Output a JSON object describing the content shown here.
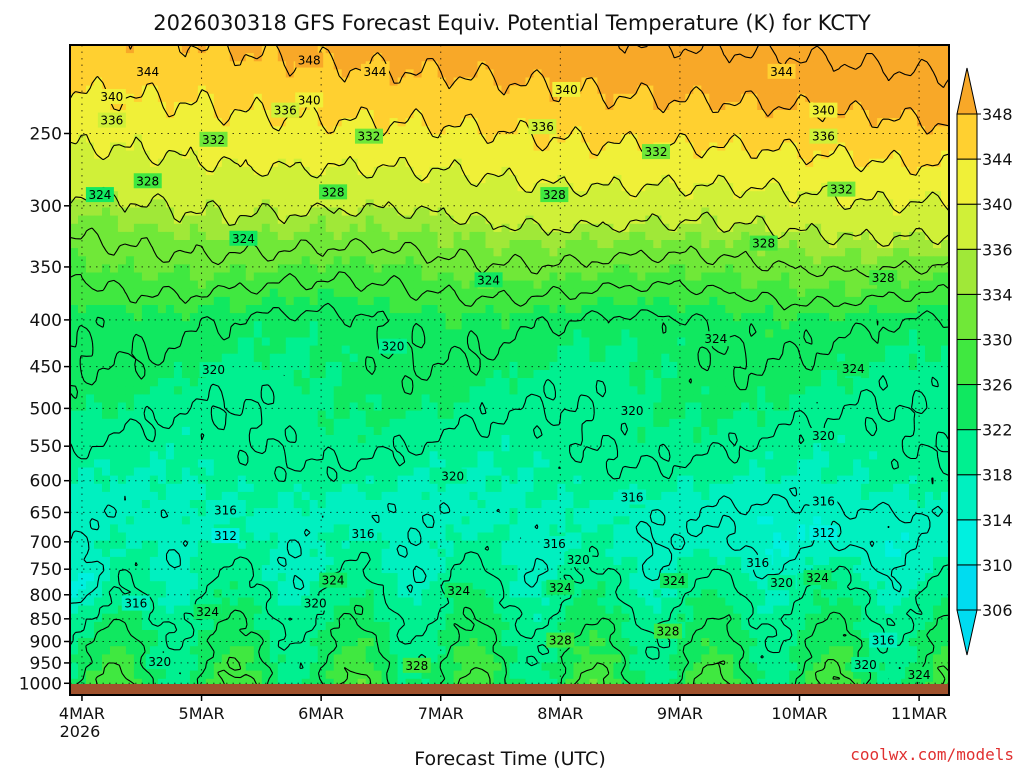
{
  "chart_data": {
    "type": "heatmap",
    "title": "2026030318 GFS Forecast Equiv. Potential Temperature (K) for KCTY",
    "xlabel": "Forecast Time (UTC)",
    "ylabel": "",
    "y_axis": {
      "inverted": true,
      "range": [
        200,
        1030
      ],
      "ticks": [
        250,
        300,
        350,
        400,
        450,
        500,
        550,
        600,
        650,
        700,
        750,
        800,
        850,
        900,
        950,
        1000
      ]
    },
    "x_axis": {
      "range": [
        -0.1,
        7.25
      ],
      "ticks": [
        {
          "value": 0,
          "label": "4MAR",
          "sublabel": "2026"
        },
        {
          "value": 1,
          "label": "5MAR"
        },
        {
          "value": 2,
          "label": "6MAR"
        },
        {
          "value": 3,
          "label": "7MAR"
        },
        {
          "value": 4,
          "label": "8MAR"
        },
        {
          "value": 5,
          "label": "9MAR"
        },
        {
          "value": 6,
          "label": "10MAR"
        },
        {
          "value": 7,
          "label": "11MAR"
        }
      ]
    },
    "colorbar": {
      "levels": [
        306,
        310,
        314,
        318,
        322,
        326,
        330,
        334,
        336,
        340,
        344,
        348
      ],
      "colors": [
        "#00dcf0",
        "#00f0e0",
        "#00f0c0",
        "#00f090",
        "#10e860",
        "#40e840",
        "#70e838",
        "#a0e838",
        "#d0f038",
        "#f0f038",
        "#ffd030",
        "#f8a828"
      ]
    },
    "contour_interval": 4,
    "contour_labels": [
      {
        "t": 1.9,
        "p": 208,
        "v": "348"
      },
      {
        "t": 0.55,
        "p": 214,
        "v": "344"
      },
      {
        "t": 2.45,
        "p": 214,
        "v": "344"
      },
      {
        "t": 5.85,
        "p": 214,
        "v": "344"
      },
      {
        "t": 0.25,
        "p": 228,
        "v": "340"
      },
      {
        "t": 1.9,
        "p": 230,
        "v": "340"
      },
      {
        "t": 4.05,
        "p": 224,
        "v": "340"
      },
      {
        "t": 6.2,
        "p": 236,
        "v": "340"
      },
      {
        "t": 0.25,
        "p": 242,
        "v": "336"
      },
      {
        "t": 1.7,
        "p": 236,
        "v": "336"
      },
      {
        "t": 3.85,
        "p": 246,
        "v": "336"
      },
      {
        "t": 6.2,
        "p": 252,
        "v": "336"
      },
      {
        "t": 1.1,
        "p": 254,
        "v": "332"
      },
      {
        "t": 2.4,
        "p": 252,
        "v": "332"
      },
      {
        "t": 4.8,
        "p": 262,
        "v": "332"
      },
      {
        "t": 6.35,
        "p": 288,
        "v": "332"
      },
      {
        "t": 0.55,
        "p": 282,
        "v": "328"
      },
      {
        "t": 2.1,
        "p": 290,
        "v": "328"
      },
      {
        "t": 3.95,
        "p": 292,
        "v": "328"
      },
      {
        "t": 5.7,
        "p": 330,
        "v": "328"
      },
      {
        "t": 6.7,
        "p": 360,
        "v": "328"
      },
      {
        "t": 0.15,
        "p": 292,
        "v": "324"
      },
      {
        "t": 1.35,
        "p": 326,
        "v": "324"
      },
      {
        "t": 3.4,
        "p": 362,
        "v": "324"
      },
      {
        "t": 5.3,
        "p": 420,
        "v": "324"
      },
      {
        "t": 6.45,
        "p": 453,
        "v": "324"
      },
      {
        "t": 1.1,
        "p": 454,
        "v": "320"
      },
      {
        "t": 2.6,
        "p": 428,
        "v": "320"
      },
      {
        "t": 3.1,
        "p": 594,
        "v": "320"
      },
      {
        "t": 4.6,
        "p": 503,
        "v": "320"
      },
      {
        "t": 6.2,
        "p": 536,
        "v": "320"
      },
      {
        "t": 1.2,
        "p": 647,
        "v": "316"
      },
      {
        "t": 2.35,
        "p": 686,
        "v": "316"
      },
      {
        "t": 3.95,
        "p": 704,
        "v": "316"
      },
      {
        "t": 4.6,
        "p": 626,
        "v": "316"
      },
      {
        "t": 6.2,
        "p": 632,
        "v": "316"
      },
      {
        "t": 1.2,
        "p": 690,
        "v": "312"
      },
      {
        "t": 6.2,
        "p": 685,
        "v": "312"
      },
      {
        "t": 0.45,
        "p": 818,
        "v": "316"
      },
      {
        "t": 4.15,
        "p": 733,
        "v": "320"
      },
      {
        "t": 5.65,
        "p": 738,
        "v": "316"
      },
      {
        "t": 6.7,
        "p": 898,
        "v": "316"
      },
      {
        "t": 1.95,
        "p": 818,
        "v": "320"
      },
      {
        "t": 5.85,
        "p": 777,
        "v": "320"
      },
      {
        "t": 0.65,
        "p": 948,
        "v": "320"
      },
      {
        "t": 6.55,
        "p": 955,
        "v": "320"
      },
      {
        "t": 2.1,
        "p": 772,
        "v": "324"
      },
      {
        "t": 3.15,
        "p": 792,
        "v": "324"
      },
      {
        "t": 4.0,
        "p": 786,
        "v": "324"
      },
      {
        "t": 4.95,
        "p": 773,
        "v": "324"
      },
      {
        "t": 6.15,
        "p": 767,
        "v": "324"
      },
      {
        "t": 1.05,
        "p": 836,
        "v": "324"
      },
      {
        "t": 7.0,
        "p": 979,
        "v": "324"
      },
      {
        "t": 2.8,
        "p": 957,
        "v": "328"
      },
      {
        "t": 4.0,
        "p": 898,
        "v": "328"
      },
      {
        "t": 4.9,
        "p": 878,
        "v": "328"
      }
    ],
    "surface_color": "#a0522d"
  },
  "credit": "coolwx.com/models"
}
